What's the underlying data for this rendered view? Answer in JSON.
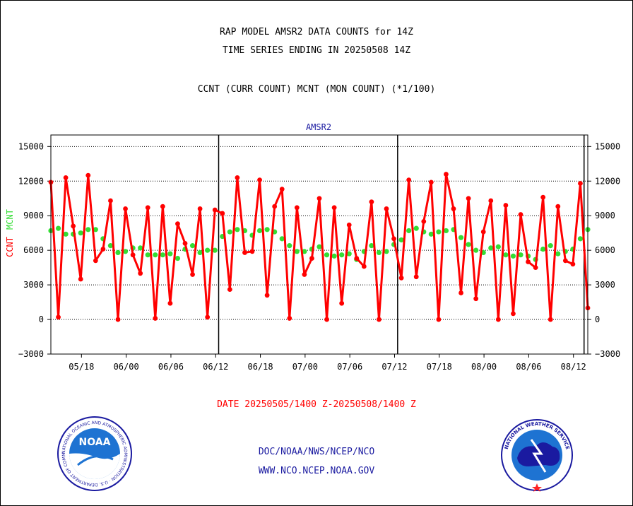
{
  "header": {
    "line1": "RAP MODEL AMSR2 DATA COUNTS for 14Z",
    "line2": "TIME SERIES ENDING IN 20250508 14Z",
    "line3": "CCNT (CURR COUNT) MCNT (MON COUNT) (*1/100)"
  },
  "date_range": "DATE 20250505/1400 Z-20250508/1400 Z",
  "footer": {
    "line1": "DOC/NOAA/NWS/NCEP/NCO",
    "line2": "WWW.NCO.NCEP.NOAA.GOV"
  },
  "logos": {
    "noaa": {
      "text": "NOAA",
      "ring_text": "NATIONAL OCEANIC AND ATMOSPHERIC ADMINISTRATION · U.S. DEPARTMENT OF COMMERCE"
    },
    "nws": {
      "ring_text": "NATIONAL WEATHER SERVICE"
    }
  },
  "colors": {
    "ccnt": "#ff0000",
    "mcnt": "#33dd33",
    "panel_title": "#1a1aa0"
  },
  "chart_data": {
    "type": "line",
    "panel_title": "AMSR2",
    "ylabel_left": "CCNT",
    "ylabel_right": "MCNT",
    "ylim": [
      -3000,
      16000
    ],
    "yticks": [
      -3000,
      0,
      3000,
      6000,
      9000,
      12000,
      15000
    ],
    "ytick_labels": [
      "−3000",
      "0",
      "3000",
      "6000",
      "9000",
      "12000",
      "15000"
    ],
    "xticks": [
      "05/18",
      "06/00",
      "06/06",
      "06/12",
      "06/18",
      "07/00",
      "07/06",
      "07/12",
      "07/18",
      "08/00",
      "08/06",
      "08/12"
    ],
    "day_boundaries_after_cycles": [
      22,
      46,
      71
    ],
    "grid": true,
    "series": [
      {
        "name": "CCNT",
        "values": [
          11900,
          200,
          12300,
          8100,
          3500,
          12500,
          5100,
          6100,
          10300,
          0,
          9600,
          5600,
          4000,
          9700,
          100,
          9800,
          1400,
          8300,
          6600,
          3900,
          9600,
          200,
          9500,
          9200,
          2600,
          12300,
          5800,
          5900,
          12100,
          2100,
          9800,
          11300,
          100,
          9700,
          3900,
          5300,
          10500,
          0,
          9700,
          1400,
          8200,
          5300,
          4600,
          10200,
          0,
          9600,
          7000,
          3600,
          12100,
          3700,
          8500,
          11900,
          0,
          12600,
          9600,
          2300,
          10500,
          1800,
          7600,
          10300,
          0,
          9900,
          500,
          9100,
          5000,
          4500,
          10600,
          0,
          9800,
          5100,
          4800,
          11800,
          1000
        ]
      },
      {
        "name": "MCNT",
        "values": [
          7700,
          7900,
          7400,
          7400,
          7500,
          7800,
          7800,
          7000,
          6400,
          5800,
          5900,
          6200,
          6200,
          5600,
          5600,
          5600,
          5700,
          5300,
          6100,
          6400,
          5800,
          6000,
          6000,
          7200,
          7600,
          7800,
          7700,
          7300,
          7700,
          7800,
          7600,
          7000,
          6400,
          5900,
          5900,
          6100,
          6300,
          5600,
          5500,
          5600,
          5700,
          5200,
          5900,
          6400,
          5800,
          5900,
          6500,
          6900,
          7700,
          7900,
          7600,
          7400,
          7600,
          7700,
          7800,
          7100,
          6500,
          6000,
          5800,
          6200,
          6300,
          5600,
          5500,
          5600,
          5500,
          5200,
          6100,
          6400,
          5700,
          5900,
          6100,
          7000,
          7800
        ]
      }
    ]
  }
}
